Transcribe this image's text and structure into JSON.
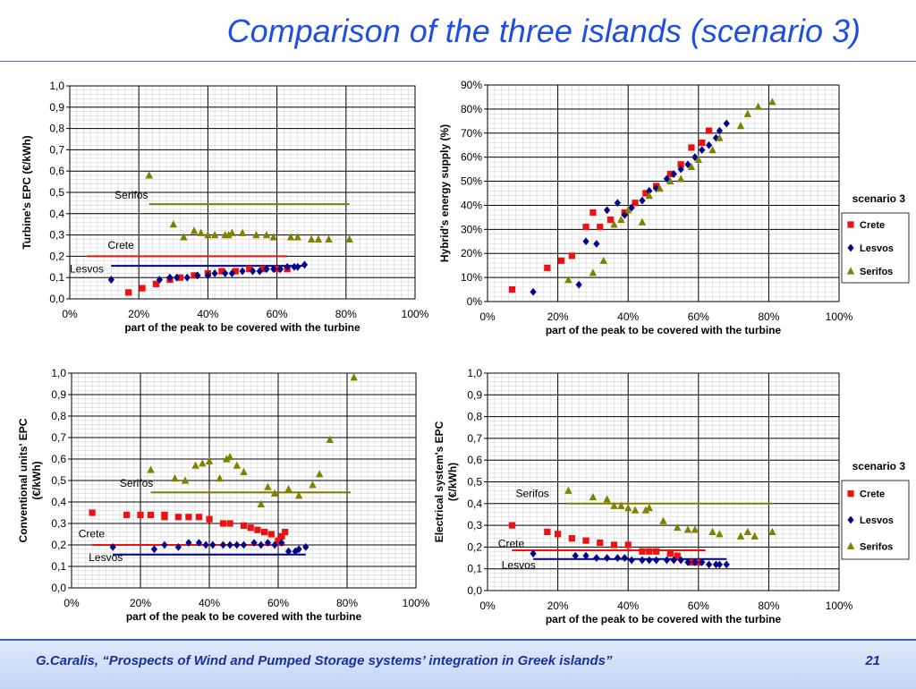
{
  "slide": {
    "title": "Comparison of the three islands (scenario 3)",
    "footer": "G.Caralis, “Prospects of Wind and Pumped Storage systems’ integration in Greek islands”",
    "page_number": "21"
  },
  "colors": {
    "Crete": "#ee1111",
    "Lesvos": "#00008b",
    "Serifos": "#808000",
    "title": "#1f4fe0"
  },
  "chart_data": [
    {
      "type": "scatter",
      "ylabel": "Turbine's EPC (€/kWh)",
      "xlabel": "part of the peak to be covered with the turbine",
      "xlim": [
        0,
        1
      ],
      "ylim": [
        0,
        1
      ],
      "x_ticks": [
        "0%",
        "20%",
        "40%",
        "60%",
        "80%",
        "100%"
      ],
      "y_ticks": [
        "0,0",
        "0,1",
        "0,2",
        "0,3",
        "0,4",
        "0,5",
        "0,6",
        "0,7",
        "0,8",
        "0,9",
        "1,0"
      ],
      "grid": true,
      "series": [
        {
          "name": "Crete",
          "marker": "square",
          "x": [
            0.17,
            0.21,
            0.25,
            0.29,
            0.32,
            0.36,
            0.4,
            0.44,
            0.48,
            0.52,
            0.56,
            0.6,
            0.63
          ],
          "y": [
            0.03,
            0.05,
            0.07,
            0.09,
            0.1,
            0.11,
            0.12,
            0.13,
            0.13,
            0.14,
            0.14,
            0.14,
            0.14
          ]
        },
        {
          "name": "Lesvos",
          "marker": "diamond",
          "x": [
            0.12,
            0.26,
            0.29,
            0.31,
            0.34,
            0.37,
            0.4,
            0.42,
            0.45,
            0.47,
            0.5,
            0.53,
            0.55,
            0.57,
            0.59,
            0.61,
            0.63,
            0.65,
            0.66,
            0.68
          ],
          "y": [
            0.09,
            0.09,
            0.1,
            0.1,
            0.1,
            0.11,
            0.11,
            0.12,
            0.12,
            0.12,
            0.13,
            0.13,
            0.13,
            0.14,
            0.14,
            0.14,
            0.15,
            0.15,
            0.15,
            0.16
          ]
        },
        {
          "name": "Serifos",
          "marker": "triangle",
          "x": [
            0.23,
            0.3,
            0.33,
            0.36,
            0.38,
            0.4,
            0.42,
            0.45,
            0.46,
            0.47,
            0.5,
            0.54,
            0.57,
            0.59,
            0.64,
            0.66,
            0.7,
            0.72,
            0.75,
            0.81
          ],
          "y": [
            0.58,
            0.35,
            0.29,
            0.32,
            0.31,
            0.3,
            0.3,
            0.3,
            0.3,
            0.31,
            0.31,
            0.3,
            0.3,
            0.29,
            0.29,
            0.29,
            0.28,
            0.28,
            0.28,
            0.28
          ]
        }
      ],
      "hlines": [
        {
          "series": "Serifos",
          "y": 0.445,
          "x1": 0.23,
          "x2": 0.81
        },
        {
          "series": "Crete",
          "y": 0.2,
          "x1": 0.05,
          "x2": 0.63
        },
        {
          "series": "Lesvos",
          "y": 0.155,
          "x1": 0.12,
          "x2": 0.68
        }
      ],
      "annotations": [
        {
          "text": "Serifos",
          "x": 0.13,
          "y": 0.47
        },
        {
          "text": "Crete",
          "x": 0.11,
          "y": 0.235
        },
        {
          "text": "Lesvos",
          "x": 0.0,
          "y": 0.125
        }
      ]
    },
    {
      "type": "scatter",
      "ylabel": "Hybrid's energy supply (%)",
      "xlabel": "part of the peak to be covered with the turbine",
      "xlim": [
        0,
        1
      ],
      "ylim": [
        0,
        0.9
      ],
      "x_ticks": [
        "0%",
        "20%",
        "40%",
        "60%",
        "80%",
        "100%"
      ],
      "y_ticks": [
        "0%",
        "10%",
        "20%",
        "30%",
        "40%",
        "50%",
        "60%",
        "70%",
        "80%",
        "90%"
      ],
      "grid": true,
      "legend": {
        "title": "scenario 3",
        "position": "right",
        "entries": [
          "Crete",
          "Lesvos",
          "Serifos"
        ]
      },
      "series": [
        {
          "name": "Crete",
          "marker": "square",
          "x": [
            0.07,
            0.17,
            0.21,
            0.24,
            0.28,
            0.3,
            0.32,
            0.35,
            0.39,
            0.42,
            0.45,
            0.48,
            0.52,
            0.55,
            0.58,
            0.61,
            0.63
          ],
          "y": [
            0.05,
            0.14,
            0.17,
            0.19,
            0.31,
            0.37,
            0.31,
            0.34,
            0.37,
            0.41,
            0.45,
            0.48,
            0.53,
            0.57,
            0.64,
            0.66,
            0.71
          ]
        },
        {
          "name": "Lesvos",
          "marker": "diamond",
          "x": [
            0.13,
            0.26,
            0.28,
            0.31,
            0.34,
            0.37,
            0.39,
            0.41,
            0.44,
            0.46,
            0.48,
            0.51,
            0.53,
            0.55,
            0.57,
            0.59,
            0.61,
            0.63,
            0.65,
            0.66,
            0.68
          ],
          "y": [
            0.04,
            0.07,
            0.25,
            0.24,
            0.38,
            0.41,
            0.36,
            0.39,
            0.42,
            0.46,
            0.47,
            0.51,
            0.53,
            0.55,
            0.57,
            0.6,
            0.63,
            0.65,
            0.68,
            0.71,
            0.74
          ]
        },
        {
          "name": "Serifos",
          "marker": "triangle",
          "x": [
            0.23,
            0.3,
            0.33,
            0.36,
            0.38,
            0.4,
            0.44,
            0.46,
            0.49,
            0.52,
            0.55,
            0.58,
            0.6,
            0.64,
            0.66,
            0.72,
            0.74,
            0.77,
            0.81
          ],
          "y": [
            0.09,
            0.12,
            0.17,
            0.32,
            0.34,
            0.38,
            0.33,
            0.44,
            0.47,
            0.5,
            0.51,
            0.56,
            0.59,
            0.63,
            0.68,
            0.73,
            0.78,
            0.81,
            0.83
          ]
        }
      ]
    },
    {
      "type": "scatter",
      "ylabel": "Conventional units' EPC (€/kWh)",
      "xlabel": "part of the peak to be covered with the turbine",
      "xlim": [
        0,
        1
      ],
      "ylim": [
        0,
        1
      ],
      "x_ticks": [
        "0%",
        "20%",
        "40%",
        "60%",
        "80%",
        "100%"
      ],
      "y_ticks": [
        "0,0",
        "0,1",
        "0,2",
        "0,3",
        "0,4",
        "0,5",
        "0,6",
        "0,7",
        "0,8",
        "0,9",
        "1,0"
      ],
      "grid": true,
      "series": [
        {
          "name": "Crete",
          "marker": "square",
          "x": [
            0.06,
            0.16,
            0.2,
            0.23,
            0.27,
            0.27,
            0.31,
            0.34,
            0.37,
            0.4,
            0.44,
            0.46,
            0.5,
            0.52,
            0.54,
            0.56,
            0.58,
            0.6,
            0.61,
            0.62
          ],
          "y": [
            0.35,
            0.34,
            0.34,
            0.34,
            0.33,
            0.34,
            0.33,
            0.33,
            0.33,
            0.32,
            0.3,
            0.3,
            0.29,
            0.28,
            0.27,
            0.26,
            0.25,
            0.22,
            0.24,
            0.26
          ]
        },
        {
          "name": "Lesvos",
          "marker": "diamond",
          "x": [
            0.12,
            0.24,
            0.27,
            0.31,
            0.34,
            0.37,
            0.39,
            0.41,
            0.44,
            0.46,
            0.48,
            0.5,
            0.53,
            0.55,
            0.57,
            0.59,
            0.61,
            0.63,
            0.65,
            0.66,
            0.68
          ],
          "y": [
            0.19,
            0.18,
            0.2,
            0.19,
            0.21,
            0.21,
            0.2,
            0.2,
            0.2,
            0.2,
            0.2,
            0.2,
            0.21,
            0.2,
            0.21,
            0.2,
            0.21,
            0.17,
            0.17,
            0.18,
            0.19
          ]
        },
        {
          "name": "Serifos",
          "marker": "triangle",
          "x": [
            0.23,
            0.3,
            0.33,
            0.36,
            0.38,
            0.4,
            0.43,
            0.45,
            0.46,
            0.48,
            0.5,
            0.55,
            0.57,
            0.59,
            0.63,
            0.66,
            0.7,
            0.72,
            0.75,
            0.82
          ],
          "y": [
            0.55,
            0.51,
            0.5,
            0.57,
            0.58,
            0.59,
            0.51,
            0.6,
            0.61,
            0.57,
            0.54,
            0.39,
            0.47,
            0.44,
            0.46,
            0.43,
            0.48,
            0.53,
            0.69,
            0.98
          ]
        }
      ],
      "hlines": [
        {
          "series": "Serifos",
          "y": 0.445,
          "x1": 0.23,
          "x2": 0.81
        },
        {
          "series": "Crete",
          "y": 0.2,
          "x1": 0.06,
          "x2": 0.62
        },
        {
          "series": "Lesvos",
          "y": 0.155,
          "x1": 0.12,
          "x2": 0.68
        }
      ],
      "annotations": [
        {
          "text": "Serifos",
          "x": 0.14,
          "y": 0.47
        },
        {
          "text": "Crete",
          "x": 0.02,
          "y": 0.235
        },
        {
          "text": "Lesvos",
          "x": 0.05,
          "y": 0.125
        }
      ]
    },
    {
      "type": "scatter",
      "ylabel": "Electrical system's EPC (€/kWh)",
      "xlabel": "part of the peak to be covered with the turbine",
      "xlim": [
        0,
        1
      ],
      "ylim": [
        0,
        1
      ],
      "x_ticks": [
        "0%",
        "20%",
        "40%",
        "60%",
        "80%",
        "100%"
      ],
      "y_ticks": [
        "0,0",
        "0,1",
        "0,2",
        "0,3",
        "0,4",
        "0,5",
        "0,6",
        "0,7",
        "0,8",
        "0,9",
        "1,0"
      ],
      "grid": true,
      "legend": {
        "title": "scenario 3",
        "position": "right",
        "entries": [
          "Crete",
          "Lesvos",
          "Serifos"
        ]
      },
      "series": [
        {
          "name": "Crete",
          "marker": "square",
          "x": [
            0.07,
            0.17,
            0.2,
            0.24,
            0.28,
            0.32,
            0.36,
            0.4,
            0.44,
            0.46,
            0.48,
            0.52,
            0.54,
            0.58,
            0.6
          ],
          "y": [
            0.3,
            0.27,
            0.26,
            0.24,
            0.23,
            0.22,
            0.21,
            0.21,
            0.18,
            0.18,
            0.18,
            0.17,
            0.16,
            0.13,
            0.13
          ]
        },
        {
          "name": "Lesvos",
          "marker": "diamond",
          "x": [
            0.13,
            0.25,
            0.28,
            0.31,
            0.34,
            0.37,
            0.39,
            0.41,
            0.44,
            0.46,
            0.48,
            0.51,
            0.53,
            0.55,
            0.57,
            0.59,
            0.61,
            0.63,
            0.65,
            0.66,
            0.68
          ],
          "y": [
            0.17,
            0.16,
            0.16,
            0.15,
            0.15,
            0.15,
            0.15,
            0.14,
            0.14,
            0.14,
            0.14,
            0.14,
            0.14,
            0.14,
            0.13,
            0.13,
            0.13,
            0.12,
            0.12,
            0.12,
            0.12
          ]
        },
        {
          "name": "Serifos",
          "marker": "triangle",
          "x": [
            0.23,
            0.3,
            0.34,
            0.36,
            0.38,
            0.4,
            0.42,
            0.45,
            0.46,
            0.5,
            0.54,
            0.57,
            0.59,
            0.64,
            0.66,
            0.72,
            0.74,
            0.76,
            0.81
          ],
          "y": [
            0.46,
            0.43,
            0.42,
            0.39,
            0.39,
            0.38,
            0.37,
            0.37,
            0.38,
            0.32,
            0.29,
            0.28,
            0.28,
            0.27,
            0.26,
            0.25,
            0.27,
            0.25,
            0.27
          ]
        }
      ],
      "hlines": [
        {
          "series": "Serifos",
          "y": 0.4,
          "x1": 0.23,
          "x2": 0.81
        },
        {
          "series": "Crete",
          "y": 0.185,
          "x1": 0.07,
          "x2": 0.62
        },
        {
          "series": "Lesvos",
          "y": 0.145,
          "x1": 0.13,
          "x2": 0.68
        }
      ],
      "annotations": [
        {
          "text": "Serifos",
          "x": 0.08,
          "y": 0.43
        },
        {
          "text": "Crete",
          "x": 0.03,
          "y": 0.2
        },
        {
          "text": "Lesvos",
          "x": 0.04,
          "y": 0.1
        }
      ]
    }
  ]
}
